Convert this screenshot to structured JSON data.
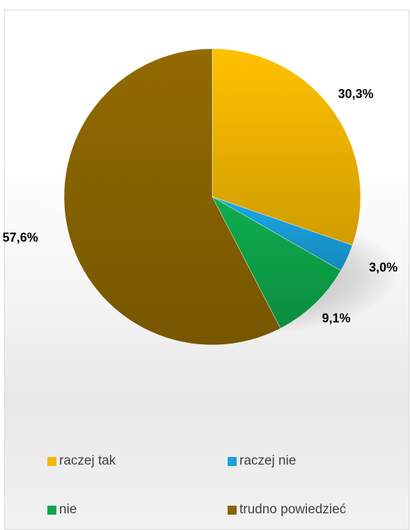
{
  "chart_data": {
    "type": "pie",
    "categories": [
      "raczej tak",
      "raczej nie",
      "nie",
      "trudno powiedzieć"
    ],
    "values": [
      30.3,
      3.0,
      9.1,
      57.6
    ],
    "labels": [
      "30,3%",
      "3,0%",
      "9,1%",
      "57,6%"
    ],
    "colors": [
      "#f5b800",
      "#1aa0dc",
      "#0da64a",
      "#8b6500"
    ],
    "legend_position": "bottom"
  }
}
